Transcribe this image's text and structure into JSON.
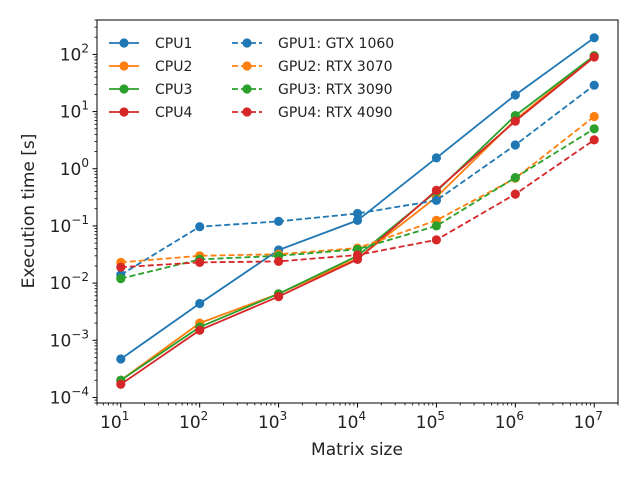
{
  "chart_data": {
    "type": "line",
    "title": "",
    "xlabel": "Matrix size",
    "ylabel": "Execution time [s]",
    "xscale": "log",
    "yscale": "log",
    "xlim": [
      5,
      20000000
    ],
    "ylim": [
      8e-05,
      400
    ],
    "grid": false,
    "legend_position": "top-left",
    "legend_columns": 2,
    "x": [
      10,
      100,
      1000,
      10000,
      100000,
      1000000,
      10000000
    ],
    "x_ticks": [
      {
        "base": "10",
        "exp": "1"
      },
      {
        "base": "10",
        "exp": "2"
      },
      {
        "base": "10",
        "exp": "3"
      },
      {
        "base": "10",
        "exp": "4"
      },
      {
        "base": "10",
        "exp": "5"
      },
      {
        "base": "10",
        "exp": "6"
      },
      {
        "base": "10",
        "exp": "7"
      }
    ],
    "y_ticks": [
      {
        "base": "10",
        "exp": "−4",
        "value": 0.0001
      },
      {
        "base": "10",
        "exp": "−3",
        "value": 0.001
      },
      {
        "base": "10",
        "exp": "−2",
        "value": 0.01
      },
      {
        "base": "10",
        "exp": "−1",
        "value": 0.1
      },
      {
        "base": "10",
        "exp": "0",
        "value": 1
      },
      {
        "base": "10",
        "exp": "1",
        "value": 10
      },
      {
        "base": "10",
        "exp": "2",
        "value": 100
      }
    ],
    "series": [
      {
        "name": "CPU1",
        "color": "#1f77b4",
        "dash": "solid",
        "values": [
          0.00047,
          0.0044,
          0.038,
          0.125,
          1.55,
          19.5,
          195
        ]
      },
      {
        "name": "CPU2",
        "color": "#ff7f0e",
        "dash": "solid",
        "values": [
          0.0002,
          0.002,
          0.0065,
          0.027,
          0.32,
          7.2,
          95
        ]
      },
      {
        "name": "CPU3",
        "color": "#2ca02c",
        "dash": "solid",
        "values": [
          0.0002,
          0.0017,
          0.0065,
          0.03,
          0.4,
          8.5,
          95
        ]
      },
      {
        "name": "CPU4",
        "color": "#d62728",
        "dash": "solid",
        "values": [
          0.00017,
          0.0015,
          0.0058,
          0.026,
          0.42,
          6.8,
          90
        ]
      },
      {
        "name": "GPU1: GTX 1060",
        "color": "#1f77b4",
        "dash": "dashed",
        "values": [
          0.014,
          0.097,
          0.12,
          0.165,
          0.28,
          2.6,
          29
        ]
      },
      {
        "name": "GPU2: RTX 3070",
        "color": "#ff7f0e",
        "dash": "dashed",
        "values": [
          0.023,
          0.03,
          0.032,
          0.041,
          0.125,
          0.68,
          8.2
        ]
      },
      {
        "name": "GPU3: RTX 3090",
        "color": "#2ca02c",
        "dash": "dashed",
        "values": [
          0.012,
          0.026,
          0.03,
          0.039,
          0.1,
          0.7,
          5
        ]
      },
      {
        "name": "GPU4: RTX 4090",
        "color": "#d62728",
        "dash": "dashed",
        "values": [
          0.019,
          0.023,
          0.024,
          0.031,
          0.057,
          0.36,
          3.2
        ]
      }
    ]
  }
}
